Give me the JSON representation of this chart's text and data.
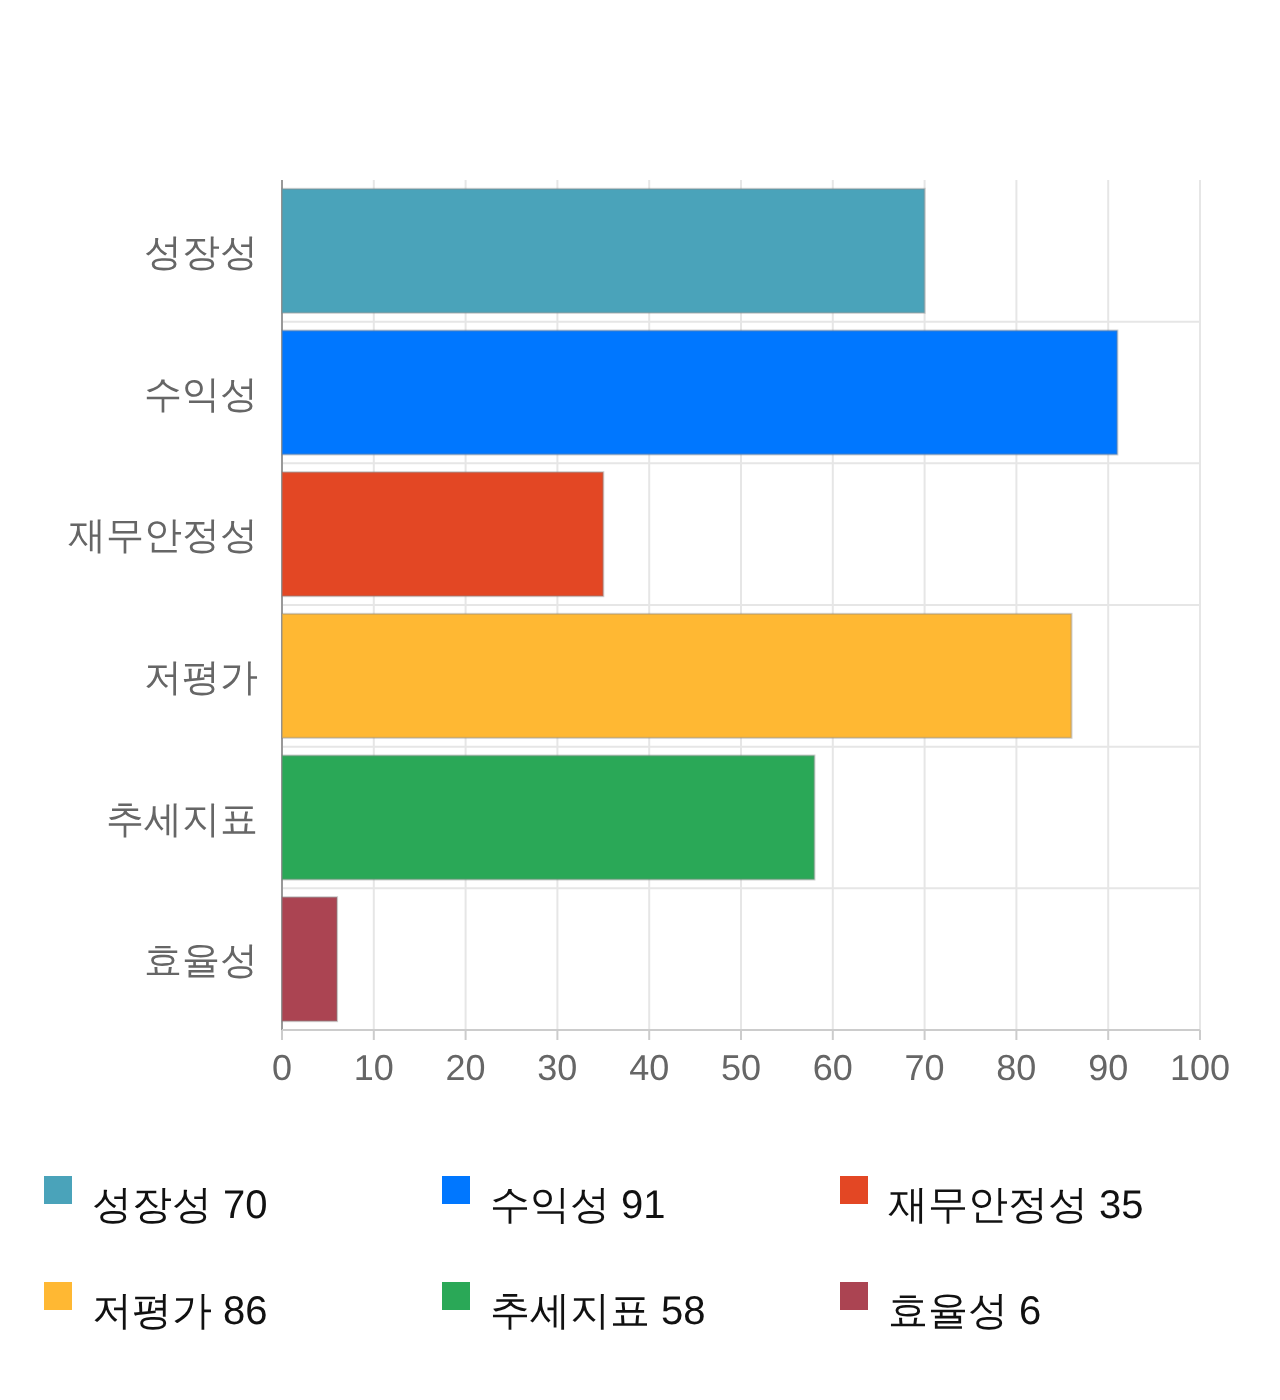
{
  "chart_data": {
    "type": "bar",
    "orientation": "horizontal",
    "categories": [
      "성장성",
      "수익성",
      "재무안정성",
      "저평가",
      "추세지표",
      "효율성"
    ],
    "series": [
      {
        "name": "성장성 70",
        "color": "#4aa3ba",
        "values": [
          70,
          null,
          null,
          null,
          null,
          null
        ]
      },
      {
        "name": "수익성 91",
        "color": "#0077ff",
        "values": [
          null,
          91,
          null,
          null,
          null,
          null
        ]
      },
      {
        "name": "재무안정성 35",
        "color": "#e34724",
        "values": [
          null,
          null,
          35,
          null,
          null,
          null
        ]
      },
      {
        "name": "저평가 86",
        "color": "#ffb833",
        "values": [
          null,
          null,
          null,
          86,
          null,
          null
        ]
      },
      {
        "name": "추세지표 58",
        "color": "#2aa857",
        "values": [
          null,
          null,
          null,
          null,
          58,
          null
        ]
      },
      {
        "name": "효율성 6",
        "color": "#ab4452",
        "values": [
          null,
          null,
          null,
          null,
          null,
          6
        ]
      }
    ],
    "xlim": [
      0,
      100
    ],
    "xticks": [
      0,
      10,
      20,
      30,
      40,
      50,
      60,
      70,
      80,
      90,
      100
    ],
    "grid": true,
    "legend": "bottom"
  }
}
